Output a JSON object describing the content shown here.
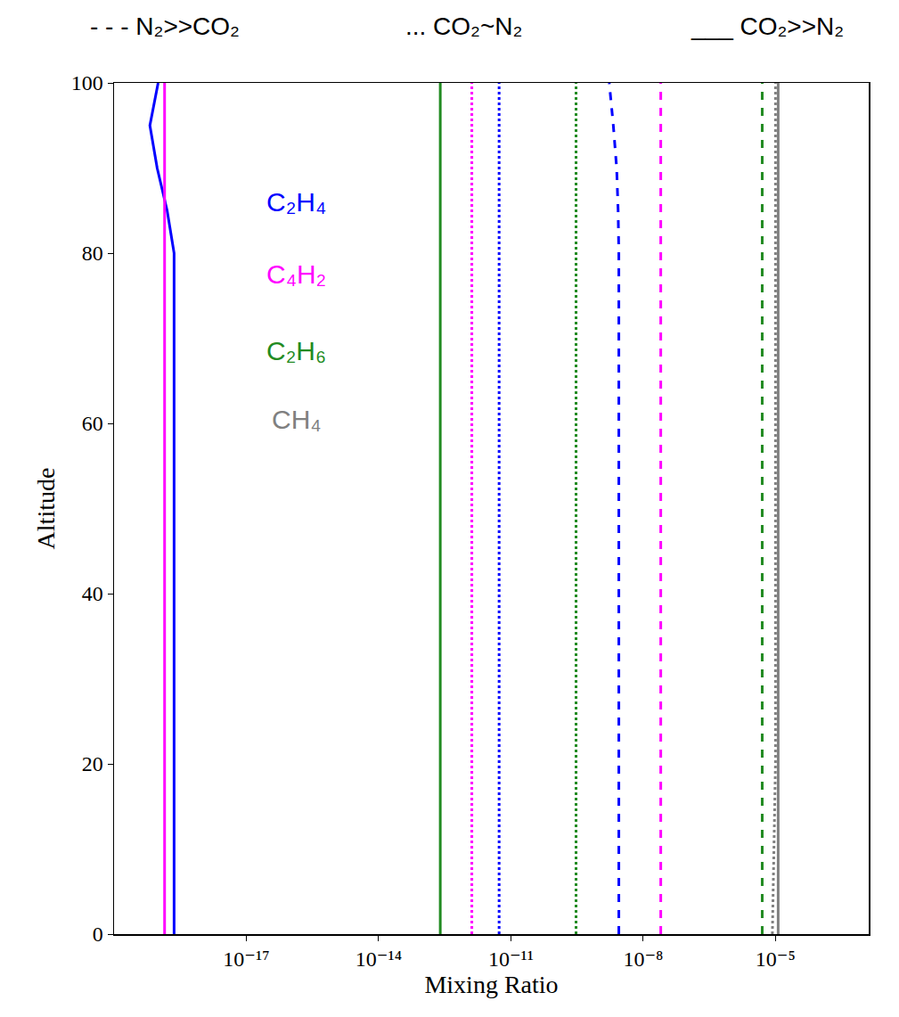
{
  "chart_data": {
    "type": "line",
    "xlabel": "Mixing Ratio",
    "ylabel": "Altitude",
    "log": "x",
    "grid": false,
    "xlim": [
      1e-20,
      0.0013
    ],
    "xticks": [
      {
        "value": 1e-17,
        "label": "10⁻¹⁷"
      },
      {
        "value": 1e-14,
        "label": "10⁻¹⁴"
      },
      {
        "value": 1e-11,
        "label": "10⁻¹¹"
      },
      {
        "value": 1e-08,
        "label": "10⁻⁸"
      },
      {
        "value": 1e-05,
        "label": "10⁻⁵"
      }
    ],
    "ylim": [
      0,
      100
    ],
    "yticks": [
      0,
      20,
      40,
      60,
      80,
      100
    ],
    "y": [
      0,
      20,
      40,
      60,
      80,
      85,
      90,
      95,
      100
    ],
    "annotations": [
      {
        "text": "- - - N₂>>CO₂",
        "color": "#000000"
      },
      {
        "text": "... CO₂~N₂",
        "color": "#000000"
      },
      {
        "text": "___ CO₂>>N₂",
        "color": "#000000"
      },
      {
        "text": "C₂H₄",
        "color": "#0000ff"
      },
      {
        "text": "C₄H₂",
        "color": "#ff00ff"
      },
      {
        "text": "C₂H₆",
        "color": "#228b22"
      },
      {
        "text": "CH₄",
        "color": "#808080"
      }
    ],
    "series": [
      {
        "name": "C₂H₄",
        "color": "#0000ff",
        "line_style": "solid",
        "values": [
          2.3e-19,
          2.3e-19,
          2.3e-19,
          2.3e-19,
          2.3e-19,
          1.6e-19,
          9.5e-20,
          6.5e-20,
          1e-19
        ]
      },
      {
        "name": "C₄H₂",
        "color": "#ff00ff",
        "line_style": "solid",
        "values": [
          1.4e-19,
          1.4e-19,
          1.4e-19,
          1.4e-19,
          1.4e-19,
          1.4e-19,
          1.4e-19,
          1.4e-19,
          1.4e-19
        ]
      },
      {
        "name": "C₂H₆",
        "color": "#228b22",
        "line_style": "solid",
        "values": [
          2.5e-13,
          2.5e-13,
          2.5e-13,
          2.5e-13,
          2.5e-13,
          2.5e-13,
          2.5e-13,
          2.5e-13,
          2.5e-13
        ]
      },
      {
        "name": "CH₄",
        "color": "#808080",
        "line_style": "solid",
        "values": [
          1.15e-05,
          1.15e-05,
          1.15e-05,
          1.15e-05,
          1.15e-05,
          1.15e-05,
          1.15e-05,
          1.15e-05,
          1.15e-05
        ]
      },
      {
        "name": "C₄H₂",
        "color": "#ff00ff",
        "line_style": "dot",
        "values": [
          1.3e-12,
          1.3e-12,
          1.3e-12,
          1.3e-12,
          1.3e-12,
          1.3e-12,
          1.3e-12,
          1.3e-12,
          1.3e-12
        ]
      },
      {
        "name": "C₂H₄",
        "color": "#0000ff",
        "line_style": "dot",
        "values": [
          5.4e-12,
          5.4e-12,
          5.4e-12,
          5.4e-12,
          5.4e-12,
          5.4e-12,
          5.4e-12,
          5.4e-12,
          5.4e-12
        ]
      },
      {
        "name": "C₂H₆",
        "color": "#228b22",
        "line_style": "dot",
        "values": [
          3e-10,
          3e-10,
          3e-10,
          3e-10,
          3e-10,
          3e-10,
          3e-10,
          3e-10,
          3e-10
        ]
      },
      {
        "name": "CH₄",
        "color": "#808080",
        "line_style": "dot",
        "values": [
          8.5e-06,
          1e-05,
          1e-05,
          1e-05,
          1e-05,
          1e-05,
          1e-05,
          1e-05,
          1e-05
        ]
      },
      {
        "name": "C₂H₄",
        "color": "#0000ff",
        "line_style": "dash",
        "values": [
          2.8e-09,
          2.8e-09,
          2.8e-09,
          2.8e-09,
          2.8e-09,
          2.7e-09,
          2.5e-09,
          2.1e-09,
          1.7e-09
        ]
      },
      {
        "name": "C₄H₂",
        "color": "#ff00ff",
        "line_style": "dash",
        "values": [
          2.5e-08,
          2.5e-08,
          2.5e-08,
          2.5e-08,
          2.5e-08,
          2.5e-08,
          2.5e-08,
          2.5e-08,
          2.5e-08
        ]
      },
      {
        "name": "C₂H₆",
        "color": "#228b22",
        "line_style": "dash",
        "values": [
          5e-06,
          5e-06,
          5e-06,
          5e-06,
          5e-06,
          5e-06,
          5e-06,
          5e-06,
          5e-06
        ]
      }
    ]
  }
}
